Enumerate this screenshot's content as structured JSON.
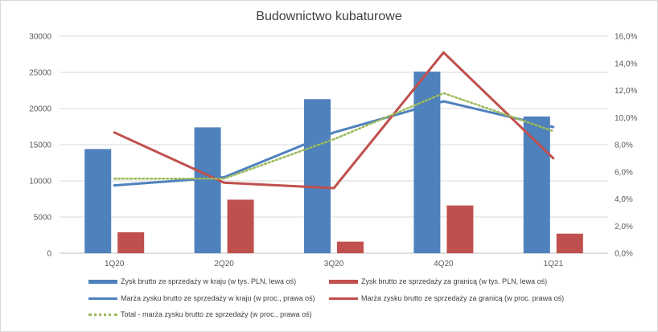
{
  "chart_data": {
    "type": "bar",
    "title": "Budownictwo kubaturowe",
    "categories": [
      "1Q20",
      "2Q20",
      "3Q20",
      "4Q20",
      "1Q21"
    ],
    "y_left": {
      "min": 0,
      "max": 30000,
      "step": 5000,
      "ticks": [
        "0",
        "5000",
        "10000",
        "15000",
        "20000",
        "25000",
        "30000"
      ]
    },
    "y_right": {
      "min": 0,
      "max": 0.16,
      "step": 0.02,
      "ticks": [
        "0,0%",
        "2,0%",
        "4,0%",
        "6,0%",
        "8,0%",
        "10,0%",
        "12,0%",
        "14,0%",
        "16,0%"
      ]
    },
    "grid": true,
    "legend_position": "bottom",
    "series": [
      {
        "name": "Zysk brutto ze sprzedaży w kraju (w tys. PLN, lewa oś)",
        "kind": "bar",
        "axis": "left",
        "color": "#4f81bd",
        "values": [
          14400,
          17400,
          21300,
          25100,
          18900
        ]
      },
      {
        "name": "Zysk brutto ze sprzedaży  za granicą (w tys. PLN, lewa oś)",
        "kind": "bar",
        "axis": "left",
        "color": "#c0504d",
        "values": [
          2900,
          7400,
          1600,
          6600,
          2700
        ]
      },
      {
        "name": "Marża zysku brutto ze sprzedaży w kraju (w proc., prawa oś)",
        "kind": "line",
        "axis": "right",
        "color": "#4f81bd",
        "dash": "",
        "values": [
          0.05,
          0.056,
          0.089,
          0.112,
          0.093
        ]
      },
      {
        "name": "Marża zysku brutto ze sprzedaży za granicą (w proc. prawa oś)",
        "kind": "line",
        "axis": "right",
        "color": "#c0504d",
        "dash": "",
        "values": [
          0.089,
          0.052,
          0.048,
          0.148,
          0.07
        ]
      },
      {
        "name": "Total - marża zysku brutto ze sprzedaży (w proc., prawa oś)",
        "kind": "line",
        "axis": "right",
        "color": "#9bbb59",
        "dash": "2,3",
        "values": [
          0.055,
          0.055,
          0.084,
          0.118,
          0.09
        ]
      }
    ]
  }
}
